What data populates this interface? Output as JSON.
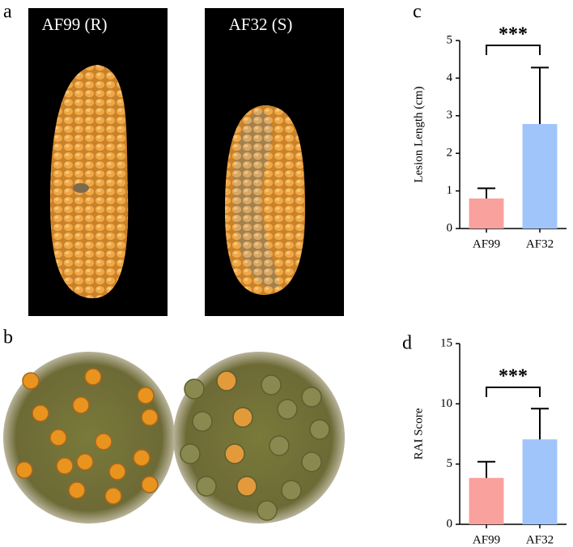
{
  "figure": {
    "panel_labels": [
      "a",
      "b",
      "c",
      "d"
    ],
    "photo_labels": [
      "AF99 (R)",
      "AF32 (S)"
    ]
  },
  "chart_data": [
    {
      "type": "bar",
      "ylabel": "Lesion Length (cm)",
      "categories": [
        "AF99",
        "AF32"
      ],
      "values": [
        0.8,
        2.78
      ],
      "errors": [
        0.27,
        1.5
      ],
      "colors": [
        "#f9a19d",
        "#a0c5fb"
      ],
      "ylim": [
        0,
        5
      ],
      "yticks": [
        0,
        1,
        2,
        3,
        4,
        5
      ],
      "annotation": "***"
    },
    {
      "type": "bar",
      "ylabel": "RAI Score",
      "categories": [
        "AF99",
        "AF32"
      ],
      "values": [
        3.85,
        7.05
      ],
      "errors": [
        1.35,
        2.55
      ],
      "colors": [
        "#f9a19d",
        "#a0c5fb"
      ],
      "ylim": [
        0,
        15
      ],
      "yticks": [
        0,
        5,
        10,
        15
      ],
      "annotation": "***"
    }
  ]
}
